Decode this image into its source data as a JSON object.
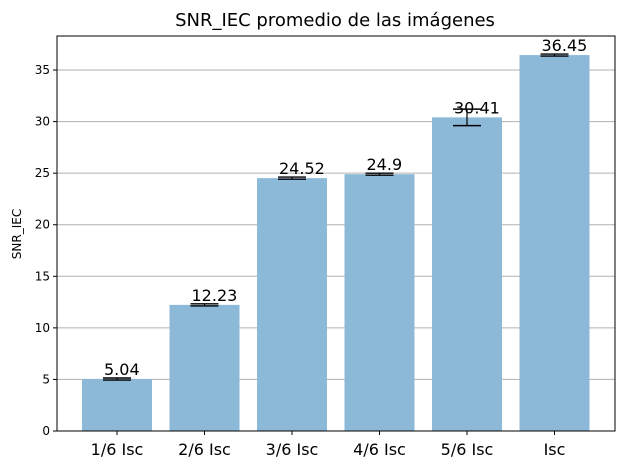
{
  "chart_data": {
    "type": "bar",
    "title": "SNR_IEC promedio de las imágenes",
    "xlabel": "",
    "ylabel": "SNR_IEC",
    "categories": [
      "1/6 Isc",
      "2/6 Isc",
      "3/6 Isc",
      "4/6 Isc",
      "5/6 Isc",
      "Isc"
    ],
    "values": [
      5.04,
      12.23,
      24.52,
      24.9,
      30.41,
      36.45
    ],
    "value_labels": [
      "5.04",
      "12.23",
      "24.52",
      "24.9",
      "30.41",
      "36.45"
    ],
    "errors": [
      0.1,
      0.1,
      0.1,
      0.1,
      0.8,
      0.1
    ],
    "ylim": [
      0,
      38.3
    ],
    "yticks": [
      0,
      5,
      10,
      15,
      20,
      25,
      30,
      35
    ],
    "ytick_labels": [
      "0",
      "5",
      "10",
      "15",
      "20",
      "25",
      "30",
      "35"
    ],
    "grid": "horizontal",
    "bar_color": "#8db9d9",
    "grid_color": "#b0b0b0"
  }
}
